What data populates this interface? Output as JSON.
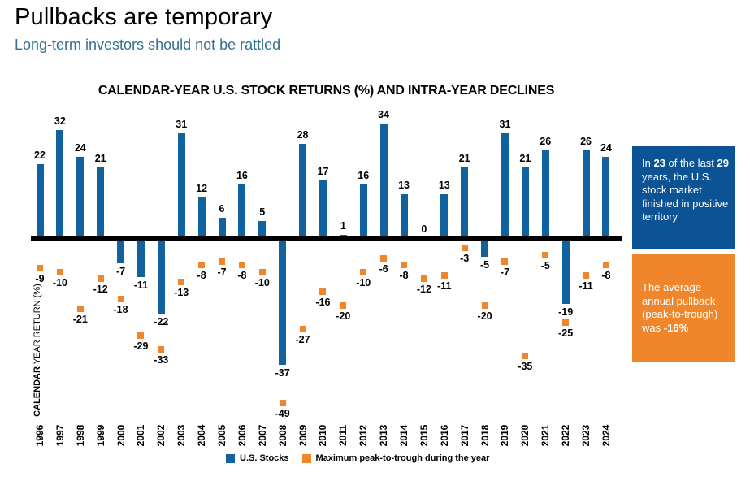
{
  "header": {
    "title": "Pullbacks are temporary",
    "subtitle": "Long-term investors should not be rattled"
  },
  "chart": {
    "ylabel_bold": "CALENDAR",
    "ylabel_rest": " YEAR RETURN (%)"
  },
  "chart_data": {
    "type": "bar",
    "title": "CALENDAR-YEAR U.S. STOCK RETURNS (%) AND INTRA-YEAR DECLINES",
    "ylabel": "CALENDAR YEAR RETURN (%)",
    "xlabel": "",
    "categories": [
      "1996",
      "1997",
      "1998",
      "1999",
      "2000",
      "2001",
      "2002",
      "2003",
      "2004",
      "2005",
      "2006",
      "2007",
      "2008",
      "2009",
      "2010",
      "2011",
      "2012",
      "2013",
      "2014",
      "2015",
      "2016",
      "2017",
      "2018",
      "2019",
      "2020",
      "2021",
      "2022",
      "2023",
      "2024"
    ],
    "series": [
      {
        "name": "U.S. Stocks",
        "color": "#11619E",
        "values": [
          22,
          32,
          24,
          21,
          -7,
          -11,
          -22,
          31,
          12,
          6,
          16,
          5,
          -37,
          28,
          17,
          1,
          16,
          34,
          13,
          0,
          13,
          21,
          -5,
          31,
          21,
          26,
          -19,
          26,
          24
        ]
      },
      {
        "name": "Maximum peak-to-trough during the year",
        "color": "#EF862C",
        "values": [
          -9,
          -10,
          -21,
          -12,
          -18,
          -29,
          -33,
          -13,
          -8,
          -7,
          -8,
          -10,
          -49,
          -27,
          -16,
          -20,
          -10,
          -6,
          -8,
          -12,
          -11,
          -3,
          -20,
          -7,
          -35,
          -5,
          -25,
          -11,
          -8
        ]
      }
    ],
    "ylim": [
      -52,
      38
    ],
    "grid": false,
    "legend_position": "bottom",
    "data_labels": true
  },
  "callouts": {
    "positive_years": {
      "bg": "#0B5394",
      "segments": [
        {
          "text": "In ",
          "bold": false
        },
        {
          "text": "23",
          "bold": true
        },
        {
          "text": " of the last ",
          "bold": false
        },
        {
          "text": "29",
          "bold": true
        },
        {
          "text": " years, the U.S. stock market finished in positive territory",
          "bold": false
        }
      ]
    },
    "average_pullback": {
      "bg": "#EF862C",
      "segments": [
        {
          "text": "The average annual pullback (peak-to-trough) was ",
          "bold": false
        },
        {
          "text": "-16%",
          "bold": true
        }
      ]
    }
  },
  "colors": {
    "bar_blue": "#11619E",
    "marker_orange": "#EF862C",
    "callout_blue_bg": "#0B5394",
    "callout_orange_bg": "#EF862C",
    "subtitle_blue": "#34708F",
    "axis_black": "#000000"
  }
}
